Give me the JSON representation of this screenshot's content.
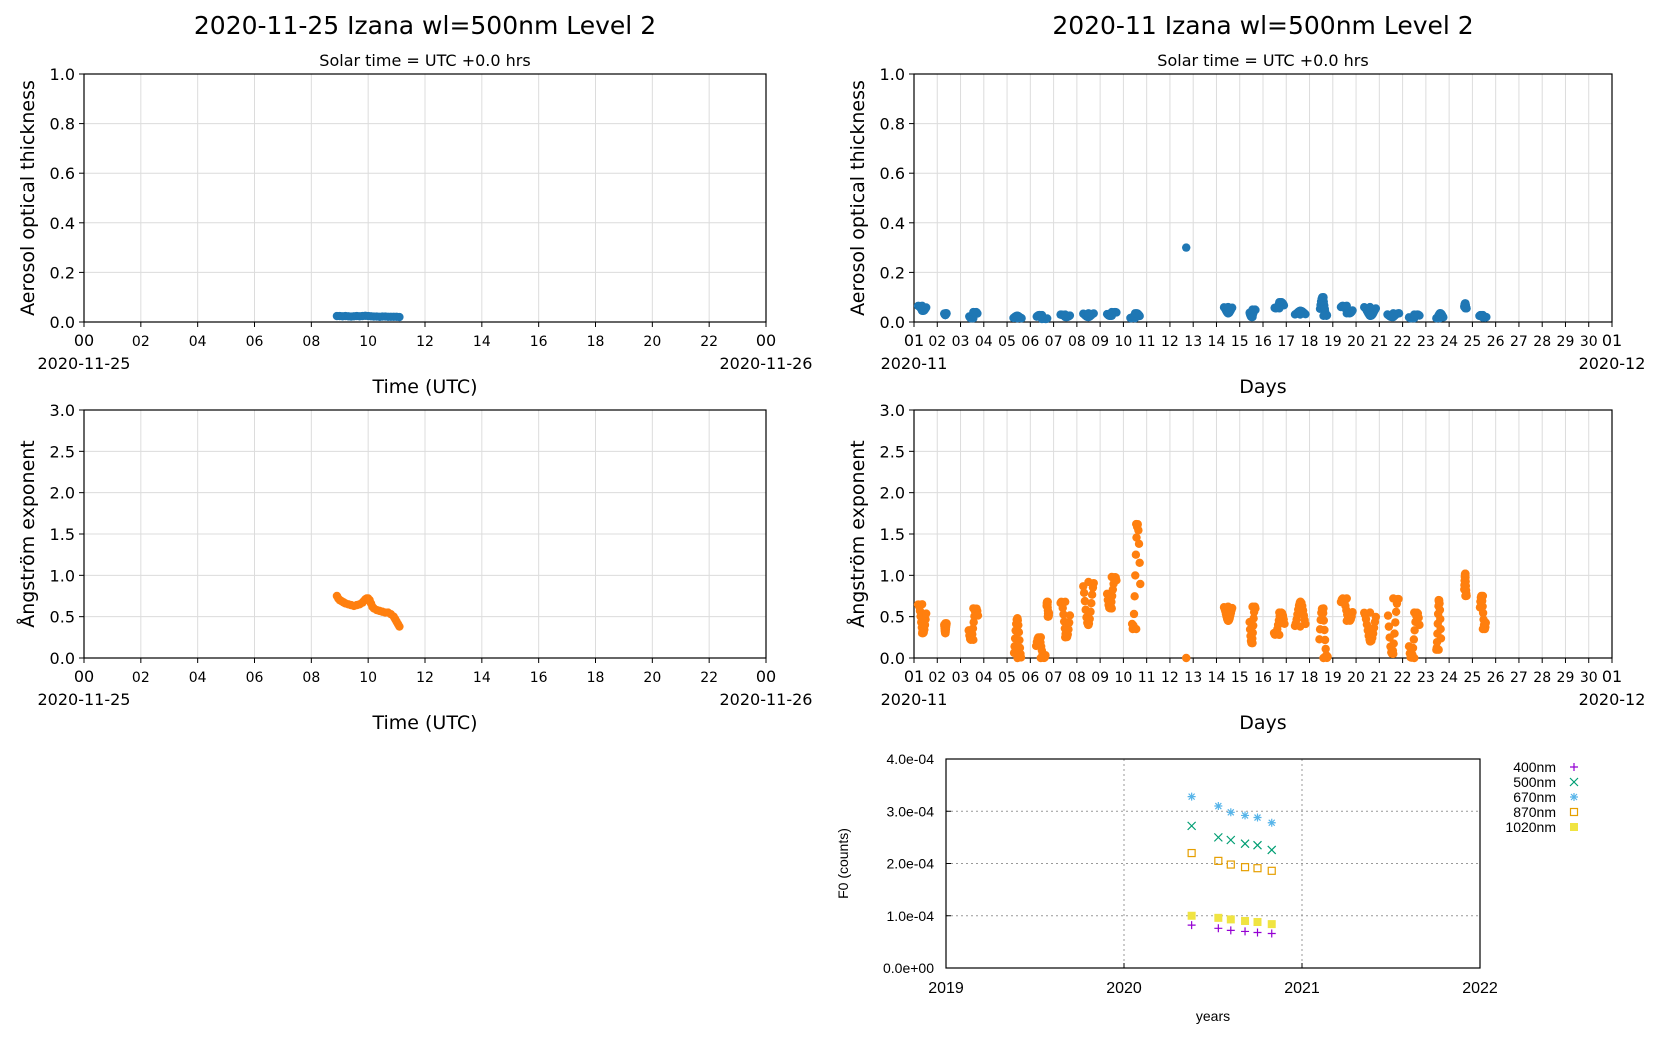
{
  "chart_data": [
    {
      "type": "scatter",
      "id": "daily_aod",
      "title": "2020-11-25  Izana  wl=500nm  Level 2",
      "subtitle": "Solar time = UTC +0.0 hrs",
      "xlabel": "Time (UTC)",
      "ylabel": "Aerosol optical thickness",
      "xlim": [
        0,
        24
      ],
      "ylim": [
        0,
        1.0
      ],
      "xticks": [
        "00",
        "02",
        "04",
        "06",
        "08",
        "10",
        "12",
        "14",
        "16",
        "18",
        "20",
        "22",
        "00"
      ],
      "yticks": [
        "0.0",
        "0.2",
        "0.4",
        "0.6",
        "0.8",
        "1.0"
      ],
      "x_start_label": "2020-11-25",
      "x_end_label": "2020-11-26",
      "grid": true,
      "color": "#1f77b4",
      "x": [
        8.9,
        9.0,
        9.1,
        9.2,
        9.3,
        9.4,
        9.5,
        9.6,
        9.7,
        9.8,
        9.9,
        10.0,
        10.1,
        10.2,
        10.3,
        10.4,
        10.5,
        10.6,
        10.7,
        10.8,
        10.9,
        11.0,
        11.1
      ],
      "y": [
        0.024,
        0.024,
        0.023,
        0.024,
        0.023,
        0.022,
        0.023,
        0.024,
        0.023,
        0.024,
        0.025,
        0.024,
        0.023,
        0.022,
        0.022,
        0.021,
        0.022,
        0.022,
        0.021,
        0.021,
        0.021,
        0.021,
        0.02
      ]
    },
    {
      "type": "scatter",
      "id": "monthly_aod",
      "title": "2020-11  Izana  wl=500nm  Level 2",
      "subtitle": "Solar time = UTC +0.0 hrs",
      "xlabel": "Days",
      "ylabel": "Aerosol optical thickness",
      "xlim": [
        1,
        31
      ],
      "ylim": [
        0,
        1.0
      ],
      "xticks": [
        "01",
        "02",
        "03",
        "04",
        "05",
        "06",
        "07",
        "08",
        "09",
        "10",
        "11",
        "12",
        "13",
        "14",
        "15",
        "16",
        "17",
        "18",
        "19",
        "20",
        "21",
        "22",
        "23",
        "24",
        "25",
        "26",
        "27",
        "28",
        "29",
        "30",
        "01"
      ],
      "yticks": [
        "0.0",
        "0.2",
        "0.4",
        "0.6",
        "0.8",
        "1.0"
      ],
      "x_start_label": "2020-11",
      "x_end_label": "2020-12",
      "grid": true,
      "color": "#1f77b4",
      "clusters": [
        {
          "day": 1.35,
          "width": 0.35,
          "ymin": 0.045,
          "ymax": 0.065
        },
        {
          "day": 2.35,
          "width": 0.1,
          "ymin": 0.028,
          "ymax": 0.035
        },
        {
          "day": 3.55,
          "width": 0.35,
          "ymin": 0.015,
          "ymax": 0.04
        },
        {
          "day": 5.45,
          "width": 0.35,
          "ymin": 0.015,
          "ymax": 0.025
        },
        {
          "day": 6.5,
          "width": 0.45,
          "ymin": 0.012,
          "ymax": 0.028
        },
        {
          "day": 7.5,
          "width": 0.4,
          "ymin": 0.02,
          "ymax": 0.03
        },
        {
          "day": 8.5,
          "width": 0.45,
          "ymin": 0.02,
          "ymax": 0.035
        },
        {
          "day": 9.5,
          "width": 0.4,
          "ymin": 0.025,
          "ymax": 0.04
        },
        {
          "day": 10.5,
          "width": 0.4,
          "ymin": 0.015,
          "ymax": 0.035
        },
        {
          "day": 14.5,
          "width": 0.35,
          "ymin": 0.035,
          "ymax": 0.06
        },
        {
          "day": 15.55,
          "width": 0.25,
          "ymin": 0.02,
          "ymax": 0.05
        },
        {
          "day": 16.7,
          "width": 0.4,
          "ymin": 0.055,
          "ymax": 0.08
        },
        {
          "day": 17.6,
          "width": 0.45,
          "ymin": 0.03,
          "ymax": 0.045
        },
        {
          "day": 18.6,
          "width": 0.3,
          "ymin": 0.025,
          "ymax": 0.1
        },
        {
          "day": 19.6,
          "width": 0.5,
          "ymin": 0.035,
          "ymax": 0.065
        },
        {
          "day": 20.6,
          "width": 0.5,
          "ymin": 0.025,
          "ymax": 0.06
        },
        {
          "day": 21.6,
          "width": 0.5,
          "ymin": 0.02,
          "ymax": 0.035
        },
        {
          "day": 22.5,
          "width": 0.45,
          "ymin": 0.015,
          "ymax": 0.03
        },
        {
          "day": 23.6,
          "width": 0.3,
          "ymin": 0.015,
          "ymax": 0.035
        },
        {
          "day": 24.7,
          "width": 0.1,
          "ymin": 0.055,
          "ymax": 0.075
        },
        {
          "day": 25.45,
          "width": 0.3,
          "ymin": 0.018,
          "ymax": 0.028
        }
      ],
      "points": [
        {
          "x": 12.7,
          "y": 0.3
        }
      ]
    },
    {
      "type": "scatter",
      "id": "daily_angstrom",
      "title": "",
      "xlabel": "Time (UTC)",
      "ylabel": "Ångström exponent",
      "xlim": [
        0,
        24
      ],
      "ylim": [
        0,
        3.0
      ],
      "xticks": [
        "00",
        "02",
        "04",
        "06",
        "08",
        "10",
        "12",
        "14",
        "16",
        "18",
        "20",
        "22",
        "00"
      ],
      "yticks": [
        "0.0",
        "0.5",
        "1.0",
        "1.5",
        "2.0",
        "2.5",
        "3.0"
      ],
      "x_start_label": "2020-11-25",
      "x_end_label": "2020-11-26",
      "grid": true,
      "color": "#ff7f0e",
      "x": [
        8.9,
        8.95,
        9.0,
        9.05,
        9.1,
        9.15,
        9.2,
        9.3,
        9.4,
        9.5,
        9.6,
        9.7,
        9.8,
        9.85,
        9.9,
        9.95,
        10.0,
        10.05,
        10.1,
        10.15,
        10.2,
        10.3,
        10.4,
        10.5,
        10.6,
        10.7,
        10.8,
        10.9,
        10.95,
        11.0,
        11.05,
        11.1
      ],
      "y": [
        0.75,
        0.72,
        0.7,
        0.69,
        0.68,
        0.67,
        0.66,
        0.65,
        0.64,
        0.63,
        0.64,
        0.65,
        0.67,
        0.69,
        0.71,
        0.72,
        0.72,
        0.7,
        0.66,
        0.62,
        0.6,
        0.58,
        0.57,
        0.56,
        0.55,
        0.55,
        0.53,
        0.5,
        0.47,
        0.44,
        0.41,
        0.38
      ]
    },
    {
      "type": "scatter",
      "id": "monthly_angstrom",
      "title": "",
      "xlabel": "Days",
      "ylabel": "Ångström exponent",
      "xlim": [
        1,
        31
      ],
      "ylim": [
        0,
        3.0
      ],
      "xticks": [
        "01",
        "02",
        "03",
        "04",
        "05",
        "06",
        "07",
        "08",
        "09",
        "10",
        "11",
        "12",
        "13",
        "14",
        "15",
        "16",
        "17",
        "18",
        "19",
        "20",
        "21",
        "22",
        "23",
        "24",
        "25",
        "26",
        "27",
        "28",
        "29",
        "30",
        "01"
      ],
      "yticks": [
        "0.0",
        "0.5",
        "1.0",
        "1.5",
        "2.0",
        "2.5",
        "3.0"
      ],
      "x_start_label": "2020-11",
      "x_end_label": "2020-12",
      "grid": true,
      "color": "#ff7f0e",
      "clusters": [
        {
          "day": 1.35,
          "width": 0.35,
          "ymin": 0.3,
          "ymax": 0.65
        },
        {
          "day": 2.35,
          "width": 0.1,
          "ymin": 0.3,
          "ymax": 0.42
        },
        {
          "day": 3.55,
          "width": 0.4,
          "ymin": 0.22,
          "ymax": 0.6
        },
        {
          "day": 5.45,
          "width": 0.3,
          "ymin": 0.0,
          "ymax": 0.48
        },
        {
          "day": 6.45,
          "width": 0.4,
          "ymin": 0.0,
          "ymax": 0.25
        },
        {
          "day": 6.75,
          "width": 0.1,
          "ymin": 0.5,
          "ymax": 0.68
        },
        {
          "day": 7.5,
          "width": 0.4,
          "ymin": 0.25,
          "ymax": 0.68
        },
        {
          "day": 8.5,
          "width": 0.45,
          "ymin": 0.4,
          "ymax": 0.92
        },
        {
          "day": 9.5,
          "width": 0.4,
          "ymin": 0.6,
          "ymax": 0.98
        },
        {
          "day": 10.55,
          "width": 0.35,
          "ymin": 0.35,
          "ymax": 1.62
        },
        {
          "day": 14.5,
          "width": 0.35,
          "ymin": 0.45,
          "ymax": 0.62
        },
        {
          "day": 15.55,
          "width": 0.25,
          "ymin": 0.18,
          "ymax": 0.62
        },
        {
          "day": 16.7,
          "width": 0.45,
          "ymin": 0.28,
          "ymax": 0.55
        },
        {
          "day": 17.6,
          "width": 0.45,
          "ymin": 0.38,
          "ymax": 0.68
        },
        {
          "day": 18.6,
          "width": 0.35,
          "ymin": 0.0,
          "ymax": 0.6
        },
        {
          "day": 19.6,
          "width": 0.5,
          "ymin": 0.45,
          "ymax": 0.72
        },
        {
          "day": 20.6,
          "width": 0.5,
          "ymin": 0.2,
          "ymax": 0.55
        },
        {
          "day": 21.6,
          "width": 0.45,
          "ymin": 0.05,
          "ymax": 0.72
        },
        {
          "day": 22.5,
          "width": 0.45,
          "ymin": 0.0,
          "ymax": 0.55
        },
        {
          "day": 23.55,
          "width": 0.2,
          "ymin": 0.1,
          "ymax": 0.7
        },
        {
          "day": 24.7,
          "width": 0.1,
          "ymin": 0.75,
          "ymax": 1.02
        },
        {
          "day": 25.45,
          "width": 0.25,
          "ymin": 0.35,
          "ymax": 0.75
        }
      ],
      "points": [
        {
          "x": 12.7,
          "y": 0.0
        }
      ]
    },
    {
      "type": "scatter",
      "id": "calibration_f0",
      "title": "",
      "xlabel": "years",
      "ylabel": "F0 (counts)",
      "xlim": [
        2019,
        2022
      ],
      "ylim": [
        0,
        0.0004
      ],
      "xticks": [
        "2019",
        "2020",
        "2021",
        "2022"
      ],
      "yticks": [
        "0.0e+00",
        "1.0e-04",
        "2.0e-04",
        "3.0e-04",
        "4.0e-04"
      ],
      "grid": true,
      "legend": "outside-right",
      "x": [
        2020.38,
        2020.53,
        2020.6,
        2020.68,
        2020.75,
        2020.83
      ],
      "series": [
        {
          "name": "400nm",
          "color": "#9400d3",
          "marker": "plus",
          "values": [
            8.2e-05,
            7.6e-05,
            7.2e-05,
            7e-05,
            6.8e-05,
            6.6e-05
          ]
        },
        {
          "name": "500nm",
          "color": "#009e73",
          "marker": "cross",
          "values": [
            0.000272,
            0.00025,
            0.000245,
            0.000238,
            0.000235,
            0.000226
          ]
        },
        {
          "name": "670nm",
          "color": "#56b4e9",
          "marker": "star",
          "values": [
            0.000328,
            0.00031,
            0.000298,
            0.000292,
            0.000288,
            0.000278
          ]
        },
        {
          "name": "870nm",
          "color": "#e69f00",
          "marker": "square-open",
          "values": [
            0.00022,
            0.000205,
            0.000198,
            0.000193,
            0.000191,
            0.000186
          ]
        },
        {
          "name": "1020nm",
          "color": "#f0e442",
          "marker": "square-filled",
          "values": [
            0.0001,
            9.6e-05,
            9.3e-05,
            9e-05,
            8.8e-05,
            8.4e-05
          ]
        }
      ]
    }
  ]
}
